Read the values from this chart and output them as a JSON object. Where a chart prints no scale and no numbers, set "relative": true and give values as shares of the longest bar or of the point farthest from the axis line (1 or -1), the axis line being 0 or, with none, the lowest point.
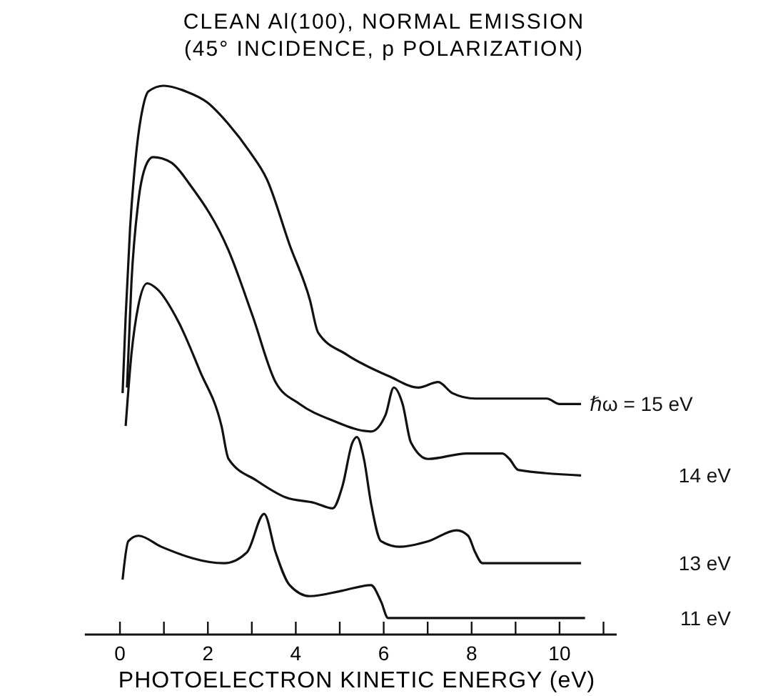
{
  "chart_data": {
    "type": "line",
    "title": "CLEAN Al(100), NORMAL EMISSION",
    "subtitle": "(45° INCIDENCE, p POLARIZATION)",
    "xlabel": "PHOTOELECTRON KINETIC ENERGY (eV)",
    "relative": true,
    "xlim": [
      -0.8,
      11.3
    ],
    "xticks": [
      0,
      {
        "value": 1,
        "label": null
      },
      2,
      {
        "value": 3,
        "label": null
      },
      4,
      {
        "value": 5,
        "label": null
      },
      6,
      {
        "value": 7,
        "label": null
      },
      8,
      {
        "value": 9,
        "label": null
      },
      10,
      {
        "value": 11,
        "label": null
      }
    ],
    "grid": false,
    "legend": false,
    "marker": "none",
    "line_style": "solid",
    "series": [
      {
        "name": "ℏω = 15 eV",
        "color": "#111111",
        "x": [
          0.06,
          0.13,
          0.23,
          0.36,
          0.52,
          0.65,
          1.0,
          1.49,
          1.98,
          2.47,
          2.95,
          3.34,
          3.86,
          4.32,
          4.51,
          5.16,
          6.14,
          6.79,
          7.24,
          7.56,
          8.08,
          9.71,
          10.0,
          10.49
        ],
        "values": [
          0.44,
          0.58,
          0.74,
          0.87,
          0.96,
          0.99,
          1.0,
          0.99,
          0.97,
          0.93,
          0.88,
          0.83,
          0.71,
          0.61,
          0.55,
          0.51,
          0.47,
          0.45,
          0.46,
          0.44,
          0.43,
          0.43,
          0.42,
          0.42
        ]
      },
      {
        "name": "14 eV",
        "color": "#111111",
        "x": [
          0.16,
          0.26,
          0.42,
          0.62,
          0.75,
          1.17,
          1.59,
          2.47,
          3.02,
          3.54,
          4.09,
          4.84,
          5.71,
          6.04,
          6.23,
          6.43,
          6.62,
          7.01,
          7.89,
          8.7,
          8.86,
          9.06,
          10.49
        ],
        "values": [
          0.45,
          0.64,
          0.79,
          0.86,
          0.87,
          0.86,
          0.82,
          0.7,
          0.58,
          0.46,
          0.42,
          0.39,
          0.37,
          0.4,
          0.45,
          0.42,
          0.35,
          0.32,
          0.33,
          0.33,
          0.32,
          0.3,
          0.29
        ]
      },
      {
        "name": "13 eV",
        "color": "#111111",
        "x": [
          0.13,
          0.26,
          0.42,
          0.62,
          0.84,
          1.33,
          1.82,
          2.31,
          2.47,
          3.12,
          3.77,
          4.42,
          4.84,
          5.06,
          5.29,
          5.39,
          5.55,
          5.71,
          5.94,
          6.36,
          7.01,
          7.66,
          7.92,
          8.08,
          8.25,
          10.49
        ],
        "values": [
          0.38,
          0.51,
          0.6,
          0.64,
          0.63,
          0.57,
          0.48,
          0.38,
          0.32,
          0.28,
          0.25,
          0.24,
          0.23,
          0.27,
          0.35,
          0.36,
          0.32,
          0.24,
          0.17,
          0.16,
          0.17,
          0.19,
          0.18,
          0.15,
          0.13,
          0.13
        ]
      },
      {
        "name": "11 eV",
        "color": "#111111",
        "x": [
          0.06,
          0.19,
          0.42,
          0.94,
          2.37,
          2.89,
          3.28,
          3.54,
          3.86,
          4.32,
          5.06,
          5.71,
          5.94,
          6.1,
          10.58
        ],
        "values": [
          0.1,
          0.17,
          0.18,
          0.16,
          0.13,
          0.15,
          0.22,
          0.15,
          0.09,
          0.07,
          0.08,
          0.09,
          0.06,
          0.03,
          0.03
        ]
      }
    ]
  }
}
